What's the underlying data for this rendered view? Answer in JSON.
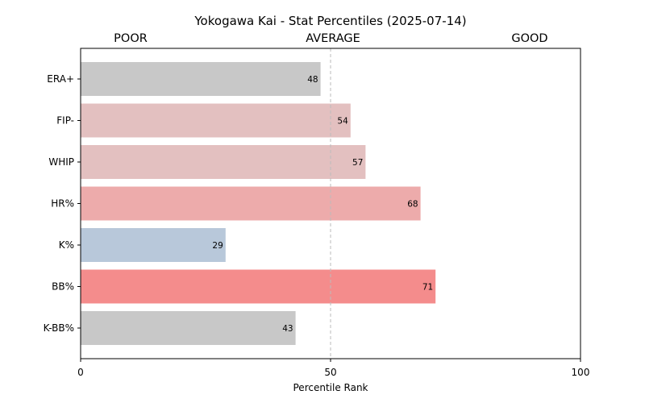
{
  "chart_data": {
    "type": "bar",
    "orientation": "horizontal",
    "title": "Yokogawa Kai - Stat Percentiles (2025-07-14)",
    "xlabel": "Percentile Rank",
    "ylabel": "",
    "xlim": [
      0,
      100
    ],
    "xticks": [
      "0",
      "50",
      "100"
    ],
    "reference_line": 50,
    "grid": false,
    "header_labels": {
      "poor": "POOR",
      "average": "AVERAGE",
      "good": "GOOD"
    },
    "categories": [
      "ERA+",
      "FIP-",
      "WHIP",
      "HR%",
      "K%",
      "BB%",
      "K-BB%"
    ],
    "values": [
      48,
      54,
      57,
      68,
      29,
      71,
      43
    ],
    "colors": [
      "#c8c8c8",
      "#e3c0c0",
      "#e3c0c0",
      "#edabab",
      "#b8c8da",
      "#f48c8c",
      "#c8c8c8"
    ]
  }
}
